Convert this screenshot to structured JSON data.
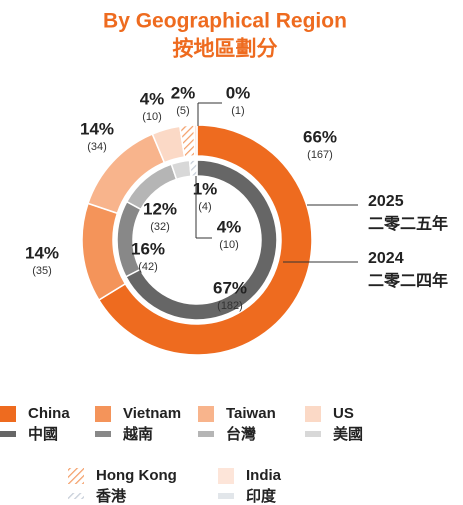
{
  "chart_data": {
    "type": "nested-donut",
    "title": "By Geographical Region",
    "title_zh": "按地區劃分",
    "categories": [
      "China",
      "Vietnam",
      "Taiwan",
      "US",
      "Hong Kong",
      "India"
    ],
    "categories_zh": [
      "中國",
      "越南",
      "台灣",
      "美國",
      "香港",
      "印度"
    ],
    "series": [
      {
        "name": "2025",
        "name_zh": "二零二五年",
        "ring": "outer",
        "colors": [
          "#ee6b1f",
          "#f4945a",
          "#f8b48c",
          "#fbd9c6",
          "hatch-orange",
          "#fde5d9"
        ],
        "values": [
          167,
          35,
          34,
          10,
          5,
          1
        ],
        "value_labels": [
          "(167)",
          "(35)",
          "(34)",
          "(10)",
          "(5)",
          "(1)"
        ],
        "percent_labels": [
          "66%",
          "14%",
          "14%",
          "4%",
          "2%",
          "0%"
        ]
      },
      {
        "name": "2024",
        "name_zh": "二零二四年",
        "ring": "inner",
        "colors": [
          "#666666",
          "#888888",
          "#b5b5b5",
          "#d8d8d8",
          "hatch-gray",
          "#e2e6ea"
        ],
        "values": [
          182,
          42,
          32,
          10,
          4,
          null
        ],
        "value_labels": [
          "(182)",
          "(42)",
          "(32)",
          "(10)",
          "(4)",
          null
        ],
        "percent_labels": [
          "67%",
          "16%",
          "12%",
          "4%",
          "1%",
          null
        ]
      }
    ]
  }
}
